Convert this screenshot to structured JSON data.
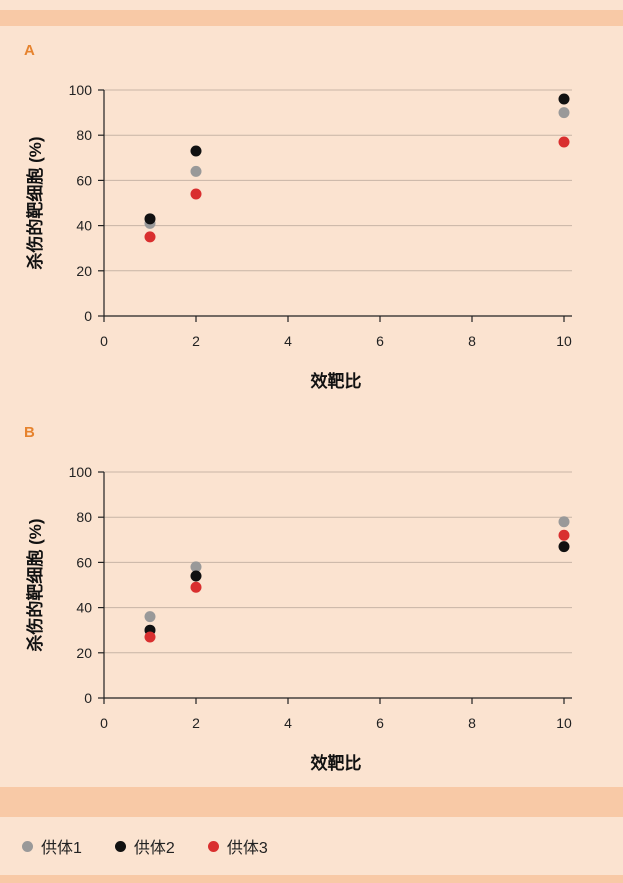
{
  "chart_data": [
    {
      "type": "scatter",
      "panel_label": "A",
      "xlabel": "效靶比",
      "ylabel": "杀伤的靶细胞 (%)",
      "xlim": [
        0,
        10
      ],
      "ylim": [
        0,
        100
      ],
      "xticks": [
        0,
        2,
        4,
        6,
        8,
        10
      ],
      "yticks": [
        0,
        20,
        40,
        60,
        80,
        100
      ],
      "grid": "horizontal",
      "series": [
        {
          "name": "供体1",
          "x": [
            1,
            2,
            10
          ],
          "y": [
            41,
            64,
            90
          ]
        },
        {
          "name": "供体2",
          "x": [
            1,
            2,
            10
          ],
          "y": [
            43,
            73,
            96
          ]
        },
        {
          "name": "供体3",
          "x": [
            1,
            2,
            10
          ],
          "y": [
            35,
            54,
            77
          ]
        }
      ]
    },
    {
      "type": "scatter",
      "panel_label": "B",
      "xlabel": "效靶比",
      "ylabel": "杀伤的靶细胞 (%)",
      "xlim": [
        0,
        10
      ],
      "ylim": [
        0,
        100
      ],
      "xticks": [
        0,
        2,
        4,
        6,
        8,
        10
      ],
      "yticks": [
        0,
        20,
        40,
        60,
        80,
        100
      ],
      "grid": "horizontal",
      "series": [
        {
          "name": "供体1",
          "x": [
            1,
            2,
            10
          ],
          "y": [
            36,
            58,
            78
          ]
        },
        {
          "name": "供体2",
          "x": [
            1,
            2,
            10
          ],
          "y": [
            30,
            54,
            67
          ]
        },
        {
          "name": "供体3",
          "x": [
            1,
            2,
            10
          ],
          "y": [
            27,
            49,
            72
          ]
        }
      ]
    }
  ],
  "colors": {
    "供体1": "#999999",
    "供体2": "#111111",
    "供体3": "#d92f2f",
    "grid": "#c8b5a6",
    "axis": "#222222"
  },
  "legend": {
    "placement": "bottom",
    "items": [
      {
        "label": "供体1",
        "color": "#999999"
      },
      {
        "label": "供体2",
        "color": "#111111"
      },
      {
        "label": "供体3",
        "color": "#d92f2f"
      }
    ]
  }
}
